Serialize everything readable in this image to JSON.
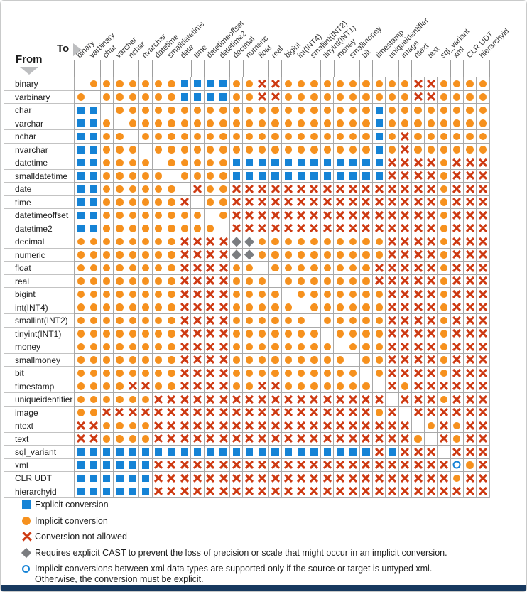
{
  "header": {
    "from_label": "From",
    "to_label": "To"
  },
  "chart_data": {
    "type": "heatmap",
    "row_axis_label": "From",
    "col_axis_label": "To",
    "categories": [
      "binary",
      "varbinary",
      "char",
      "varchar",
      "nchar",
      "nvarchar",
      "datetime",
      "smalldatetime",
      "date",
      "time",
      "datetimeoffset",
      "datetime2",
      "decimal",
      "numeric",
      "float",
      "real",
      "bigint",
      "int(INT4)",
      "smallint(INT2)",
      "tinyint(INT1)",
      "money",
      "smallmoney",
      "bit",
      "timestamp",
      "uniqueidentifier",
      "image",
      "ntext",
      "text",
      "sql_variant",
      "xml",
      "CLR UDT",
      "hierarchyid"
    ],
    "cells": [
      ".IIIIIIIEEEEIIXXIIIIIIIIIIXXIIII",
      "I.IIIIIIEEEEIIXXIIIIIIIIIIXXIIII",
      "EE.IIIIIIIIIIIIIIIIIIIIEIIIIIIII",
      "EEI.IIIIIIIIIIIIIIIIIIIEIIIIIIII",
      "EEII.IIIIIIIIIIIIIIIIIIEIXIIIIII",
      "EEIII.IIIIIIIIIIIIIIIIIEIXIIIIII",
      "EEIIII.IIIIIEEEEEEEEEEEEXXXXIXXX",
      "EEIIIII.IIIIEEEEEEEEEEEEXXXXIXXX",
      "EEIIIIII.XIIXXXXXXXXXXXXXXXXIXXX",
      "EEIIIIIIX.IIXXXXXXXXXXXXXXXXIXXX",
      "EEIIIIIIII.IXXXXXXXXXXXXXXXXIXXX",
      "EEIIIIIIIII.XXXXXXXXXXXXXXXXIXXX",
      "IIIIIIIIXXXXDDIIIIIIIIIIXXXXIXXX",
      "IIIIIIIIXXXXDDIIIIIIIIIIXXXXIXXX",
      "IIIIIIIIXXXXII.IIIIIIIIXXXXXIXXX",
      "IIIIIIIIXXXXIII.IIIIIIIXXXXXIXXX",
      "IIIIIIIIXXXXIIII.IIIIIIIXXXXIXXX",
      "IIIIIIIIXXXXIIIII.IIIIIIXXXXIXXX",
      "IIIIIIIIXXXXIIIIII.IIIIIXXXXIXXX",
      "IIIIIIIIXXXXIIIIIII.IIIIXXXXIXXX",
      "IIIIIIIIXXXXIIIIIIII.IIIXXXXIXXX",
      "IIIIIIIIXXXXIIIIIIIII.IIXXXXIXXX",
      "IIIIIIIIXXXXIIIIIIIIII.IXXXXIXXX",
      "IIIIXXIIXXXXIIXXIIIIIII.XIXXXXXX",
      "IIIIIIXXXXXXXXXXXXXXXXXX.XXXIXXX",
      "IIXXXXXXXXXXXXXXXXXXXXXIX.XXXXXX",
      "XXIIIIXXXXXXXXXXXXXXXXXXXX.IXIXX",
      "XXIIIIXXXXXXXXXXXXXXXXXXXXI.XIXX",
      "EEEEEEEEEEEEEEEEEEEEEEEXEXXX.XXX",
      "EEEEEEXXXXXXXXXXXXXXXXXXXXXXXUIX",
      "EEEEEEXXXXXXXXXXXXXXXXXXXXXXXIXX",
      "EEEEEEXXXXXXXXXXXXXXXXXXXXXXXXXX"
    ],
    "encoding": {
      ".": "blank (same type)",
      "E": "Explicit conversion",
      "I": "Implicit conversion",
      "X": "Conversion not allowed",
      "D": "Requires explicit CAST to prevent the loss of precision or scale that might occur in an implicit conversion",
      "U": "Implicit conversions between xml data types are supported only if the source or target is untyped xml"
    }
  },
  "legend": [
    {
      "code": "E",
      "label": "Explicit conversion"
    },
    {
      "code": "I",
      "label": "Implicit conversion"
    },
    {
      "code": "X",
      "label": "Conversion not allowed"
    },
    {
      "code": "D",
      "label": "Requires explicit CAST to prevent the loss of precision or scale that might occur in an implicit conversion."
    },
    {
      "code": "U",
      "label": "Implicit conversions between xml data types are supported only if the source or target is untyped xml.",
      "label_line2": "Otherwise, the conversion must be explicit."
    }
  ],
  "colors": {
    "explicit-blue": "#1583D6",
    "implicit-orange": "#F6911E",
    "not-allowed-red": "#CE3A12",
    "diamond-gray": "#7B7D80",
    "triangle-gray": "#BDBEC0",
    "footer-navy": "#17395F"
  }
}
